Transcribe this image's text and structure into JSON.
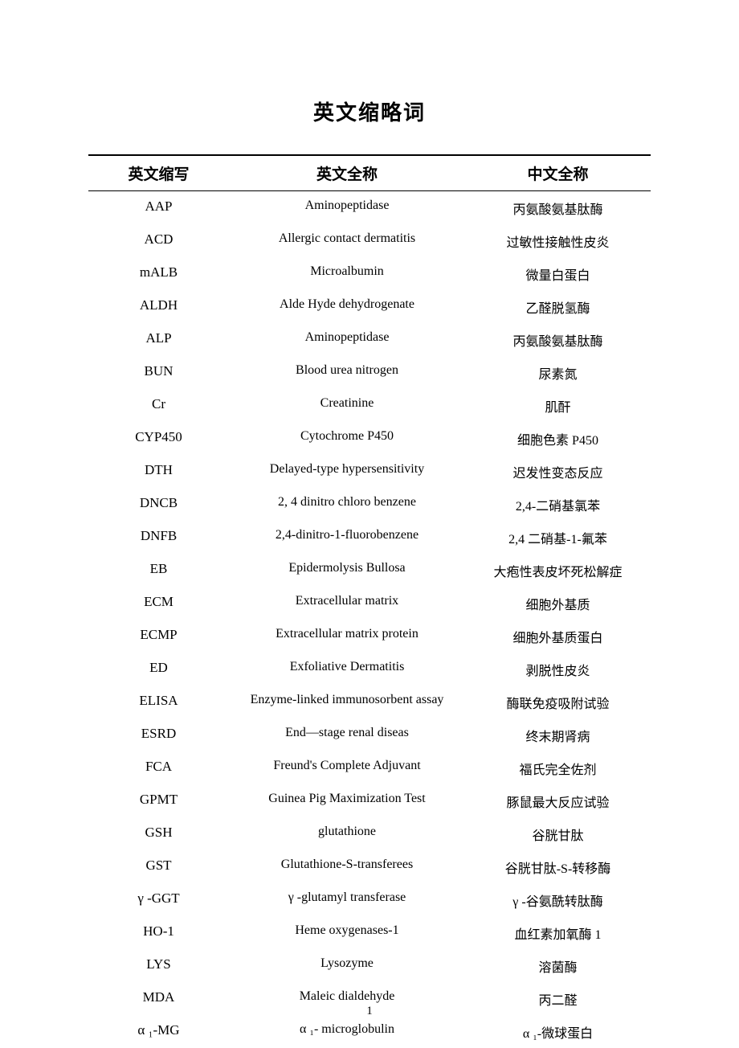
{
  "title": "英文缩略词",
  "headers": {
    "abbrev": "英文缩写",
    "english": "英文全称",
    "chinese": "中文全称"
  },
  "rows": [
    {
      "abbrev": "AAP",
      "english": "Aminopeptidase",
      "chinese": "丙氨酸氨基肽酶"
    },
    {
      "abbrev": "ACD",
      "english": "Allergic contact dermatitis",
      "chinese": "过敏性接触性皮炎"
    },
    {
      "abbrev": "mALB",
      "english": "Microalbumin",
      "chinese": "微量白蛋白"
    },
    {
      "abbrev": "ALDH",
      "english": "Alde Hyde dehydrogenate",
      "chinese": "乙醛脱氢酶"
    },
    {
      "abbrev": "ALP",
      "english": "Aminopeptidase",
      "chinese": "丙氨酸氨基肽酶"
    },
    {
      "abbrev": "BUN",
      "english": "Blood urea nitrogen",
      "chinese": "尿素氮"
    },
    {
      "abbrev": "Cr",
      "english": "Creatinine",
      "chinese": "肌酐"
    },
    {
      "abbrev": "CYP450",
      "english": "Cytochrome P450",
      "chinese": "细胞色素 P450"
    },
    {
      "abbrev": "DTH",
      "english": "Delayed-type hypersensitivity",
      "chinese": "迟发性变态反应"
    },
    {
      "abbrev": "DNCB",
      "english": "2, 4 dinitro chloro benzene",
      "chinese": "2,4-二硝基氯苯"
    },
    {
      "abbrev": "DNFB",
      "english": "2,4-dinitro-1-fluorobenzene",
      "chinese": "2,4 二硝基-1-氟苯"
    },
    {
      "abbrev": "EB",
      "english": "Epidermolysis Bullosa",
      "chinese": "大疱性表皮坏死松解症"
    },
    {
      "abbrev": "ECM",
      "english": "Extracellular matrix",
      "chinese": "细胞外基质"
    },
    {
      "abbrev": "ECMP",
      "english": "Extracellular matrix protein",
      "chinese": "细胞外基质蛋白"
    },
    {
      "abbrev": "ED",
      "english": "Exfoliative Dermatitis",
      "chinese": "剥脱性皮炎"
    },
    {
      "abbrev": "ELISA",
      "english": "Enzyme-linked immunosorbent assay",
      "chinese": "酶联免疫吸附试验"
    },
    {
      "abbrev": "ESRD",
      "english": "End—stage renal diseas",
      "chinese": "终末期肾病"
    },
    {
      "abbrev": "FCA",
      "english": "Freund's Complete Adjuvant",
      "chinese": "福氏完全佐剂"
    },
    {
      "abbrev": "GPMT",
      "english": "Guinea Pig Maximization Test",
      "chinese": "豚鼠最大反应试验"
    },
    {
      "abbrev": "GSH",
      "english": "glutathione",
      "chinese": "谷胱甘肽"
    },
    {
      "abbrev": "GST",
      "english": "Glutathione-S-transferees",
      "chinese": "谷胱甘肽-S-转移酶"
    },
    {
      "abbrev": "γ -GGT",
      "english": "γ -glutamyl transferase",
      "chinese": "γ -谷氨酰转肽酶"
    },
    {
      "abbrev": "HO-1",
      "english": "Heme oxygenases-1",
      "chinese": "血红素加氧酶 1"
    },
    {
      "abbrev": "LYS",
      "english": "Lysozyme",
      "chinese": "溶菌酶"
    },
    {
      "abbrev": "MDA",
      "english": "Maleic dialdehyde",
      "chinese": "丙二醛"
    },
    {
      "abbrev": "α ₁-MG",
      "english": "α ₁- microglobulin",
      "chinese": "α ₁-微球蛋白"
    }
  ],
  "pageNumber": "1"
}
